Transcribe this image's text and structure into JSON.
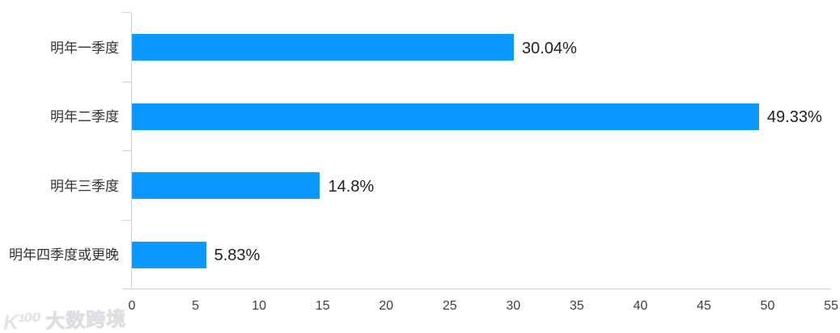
{
  "chart_data": {
    "type": "bar",
    "orientation": "horizontal",
    "title": "",
    "xlabel": "",
    "ylabel": "",
    "categories": [
      "明年一季度",
      "明年二季度",
      "明年三季度",
      "明年四季度或更晚"
    ],
    "values": [
      30.04,
      49.33,
      14.8,
      5.83
    ],
    "value_labels": [
      "30.04%",
      "49.33%",
      "14.8%",
      "5.83%"
    ],
    "xlim": [
      0,
      55
    ],
    "x_ticks": [
      0,
      5,
      10,
      15,
      20,
      25,
      30,
      35,
      40,
      45,
      50,
      55
    ],
    "grid": false,
    "legend": false,
    "bar_color": "#0a9aff",
    "axis_color": "#ccd4dd",
    "category_label_color": "#333333",
    "value_label_color": "#1f1f1f",
    "tick_label_color": "#404040"
  },
  "watermark": {
    "logo": "K¹⁰⁰",
    "text": "大数跨境"
  }
}
